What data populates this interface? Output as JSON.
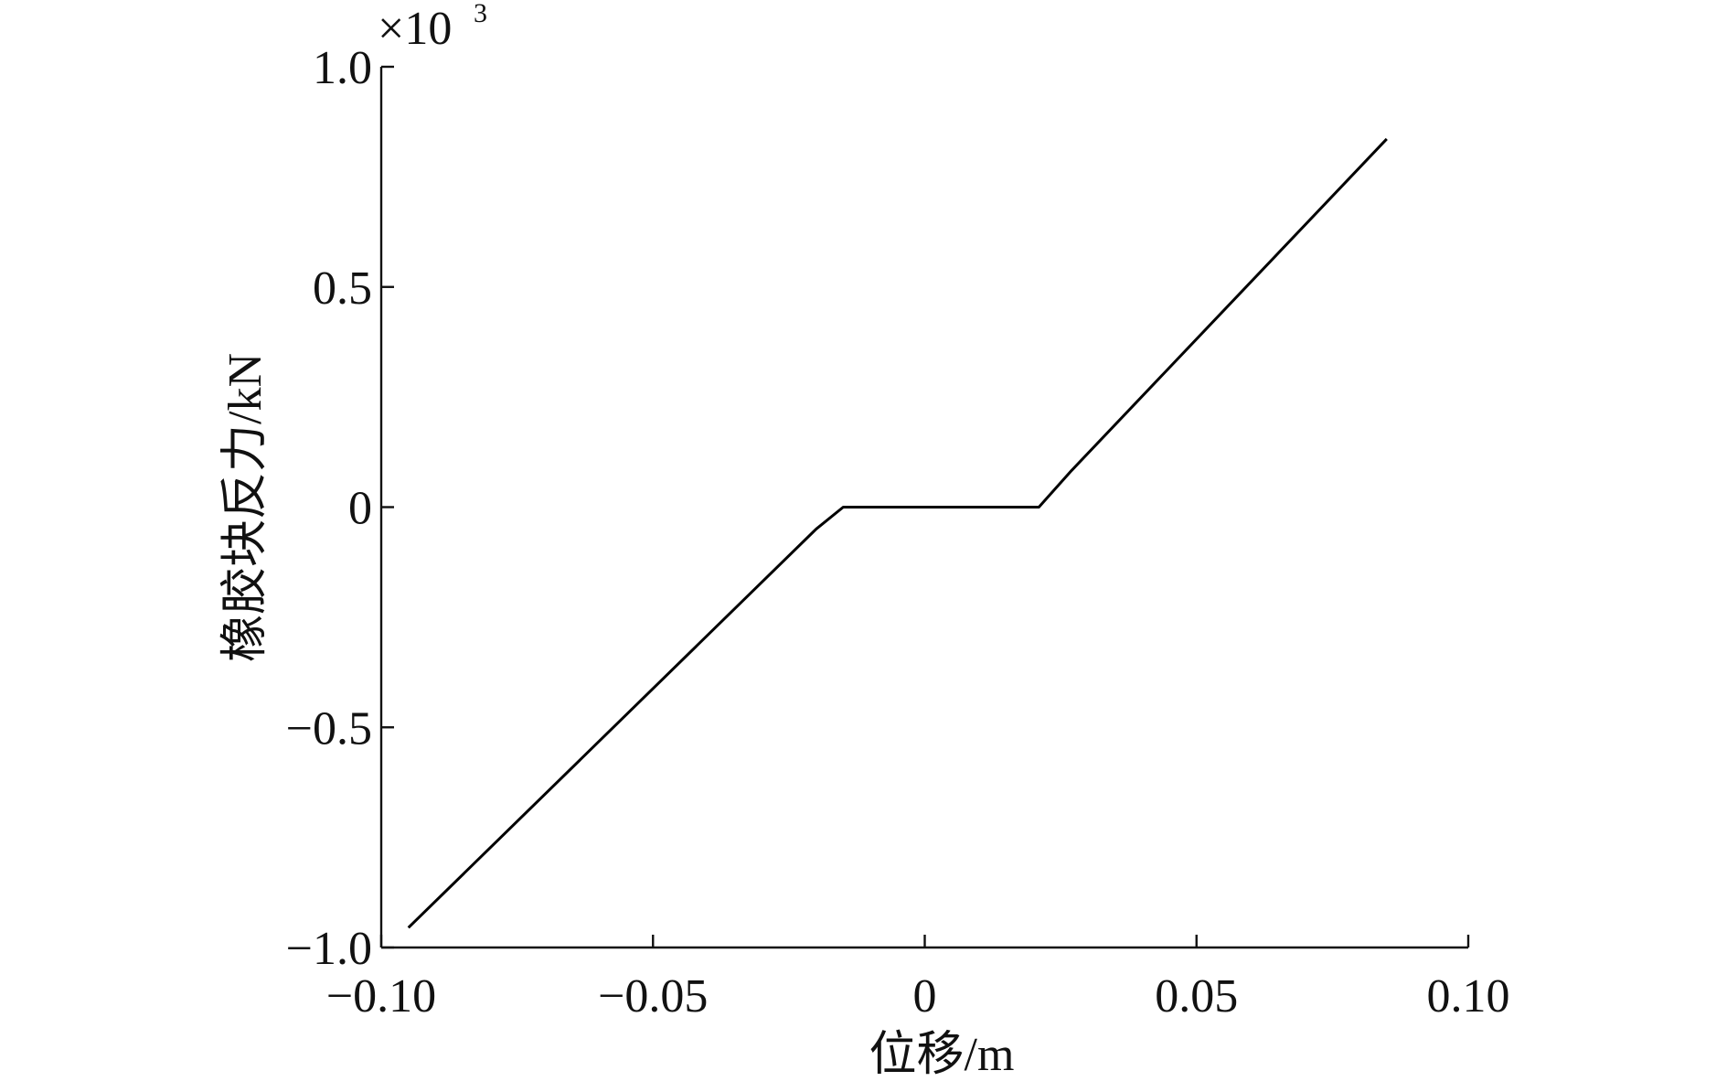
{
  "chart_data": {
    "type": "line",
    "x_label": "位移/m",
    "y_label": "橡胶块反力/kN",
    "y_multiplier": "×10",
    "y_multiplier_exponent": "3",
    "x": [
      -0.095,
      -0.02,
      -0.015,
      0.015,
      0.021,
      0.027,
      0.085
    ],
    "series": [
      {
        "color": "#000000",
        "values": [
          -0.955,
          -0.05,
          0,
          0,
          0,
          0.083,
          0.836
        ]
      }
    ],
    "xlim": [
      -0.1,
      0.1
    ],
    "xticks": [
      {
        "value": -0.1,
        "label": "−0.10"
      },
      {
        "value": -0.05,
        "label": "−0.05"
      },
      0,
      0.05,
      {
        "value": 0.1,
        "label": "0.10"
      }
    ],
    "ylim": [
      -1,
      1
    ],
    "yticks": [
      {
        "value": -1,
        "label": "−1.0"
      },
      {
        "value": -0.5,
        "label": "−0.5"
      },
      0,
      0.5,
      {
        "value": 1,
        "label": "1.0"
      }
    ]
  }
}
